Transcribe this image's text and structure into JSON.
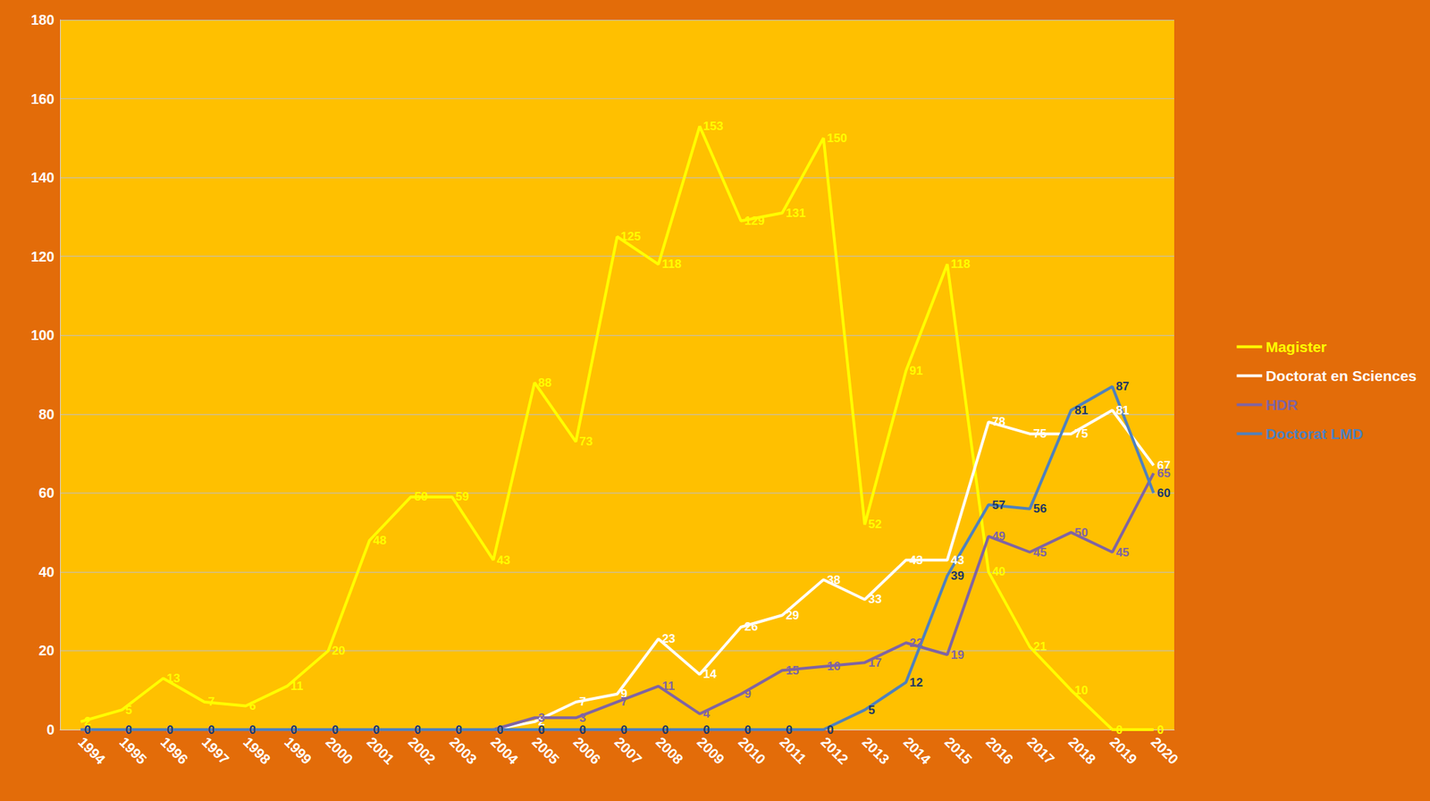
{
  "chart_data": {
    "type": "line",
    "categories": [
      "1994",
      "1995",
      "1996",
      "1997",
      "1998",
      "1999",
      "2000",
      "2001",
      "2002",
      "2003",
      "2004",
      "2005",
      "2006",
      "2007",
      "2008",
      "2009",
      "2010",
      "2011",
      "2012",
      "2013",
      "2014",
      "2015",
      "2016",
      "2017",
      "2018",
      "2019",
      "2020"
    ],
    "series": [
      {
        "name": "Magister",
        "color": "#FFFF00",
        "values": [
          2,
          5,
          13,
          7,
          6,
          11,
          20,
          48,
          59,
          59,
          43,
          88,
          73,
          125,
          118,
          153,
          129,
          131,
          150,
          52,
          91,
          118,
          40,
          21,
          10,
          0,
          0
        ]
      },
      {
        "name": "Doctorat en Sciences",
        "color": "#FFFFFF",
        "values": [
          0,
          0,
          0,
          0,
          0,
          0,
          0,
          0,
          0,
          0,
          0,
          2,
          7,
          9,
          23,
          14,
          26,
          29,
          38,
          33,
          43,
          43,
          78,
          75,
          75,
          81,
          67
        ]
      },
      {
        "name": "HDR",
        "color": "#8064A2",
        "values": [
          0,
          0,
          0,
          0,
          0,
          0,
          0,
          0,
          0,
          0,
          0,
          3,
          3,
          7,
          11,
          4,
          9,
          15,
          16,
          17,
          22,
          19,
          49,
          45,
          50,
          45,
          65
        ]
      },
      {
        "name": "Doctorat LMD",
        "color": "#4F81BD",
        "values": [
          0,
          0,
          0,
          0,
          0,
          0,
          0,
          0,
          0,
          0,
          0,
          0,
          0,
          0,
          0,
          0,
          0,
          0,
          0,
          5,
          12,
          39,
          57,
          56,
          81,
          87,
          60
        ]
      }
    ],
    "ylim": [
      0,
      180
    ],
    "yticks": [
      0,
      20,
      40,
      60,
      80,
      100,
      120,
      140,
      160,
      180
    ],
    "grid": true,
    "legend": "right",
    "data_labels": true
  }
}
